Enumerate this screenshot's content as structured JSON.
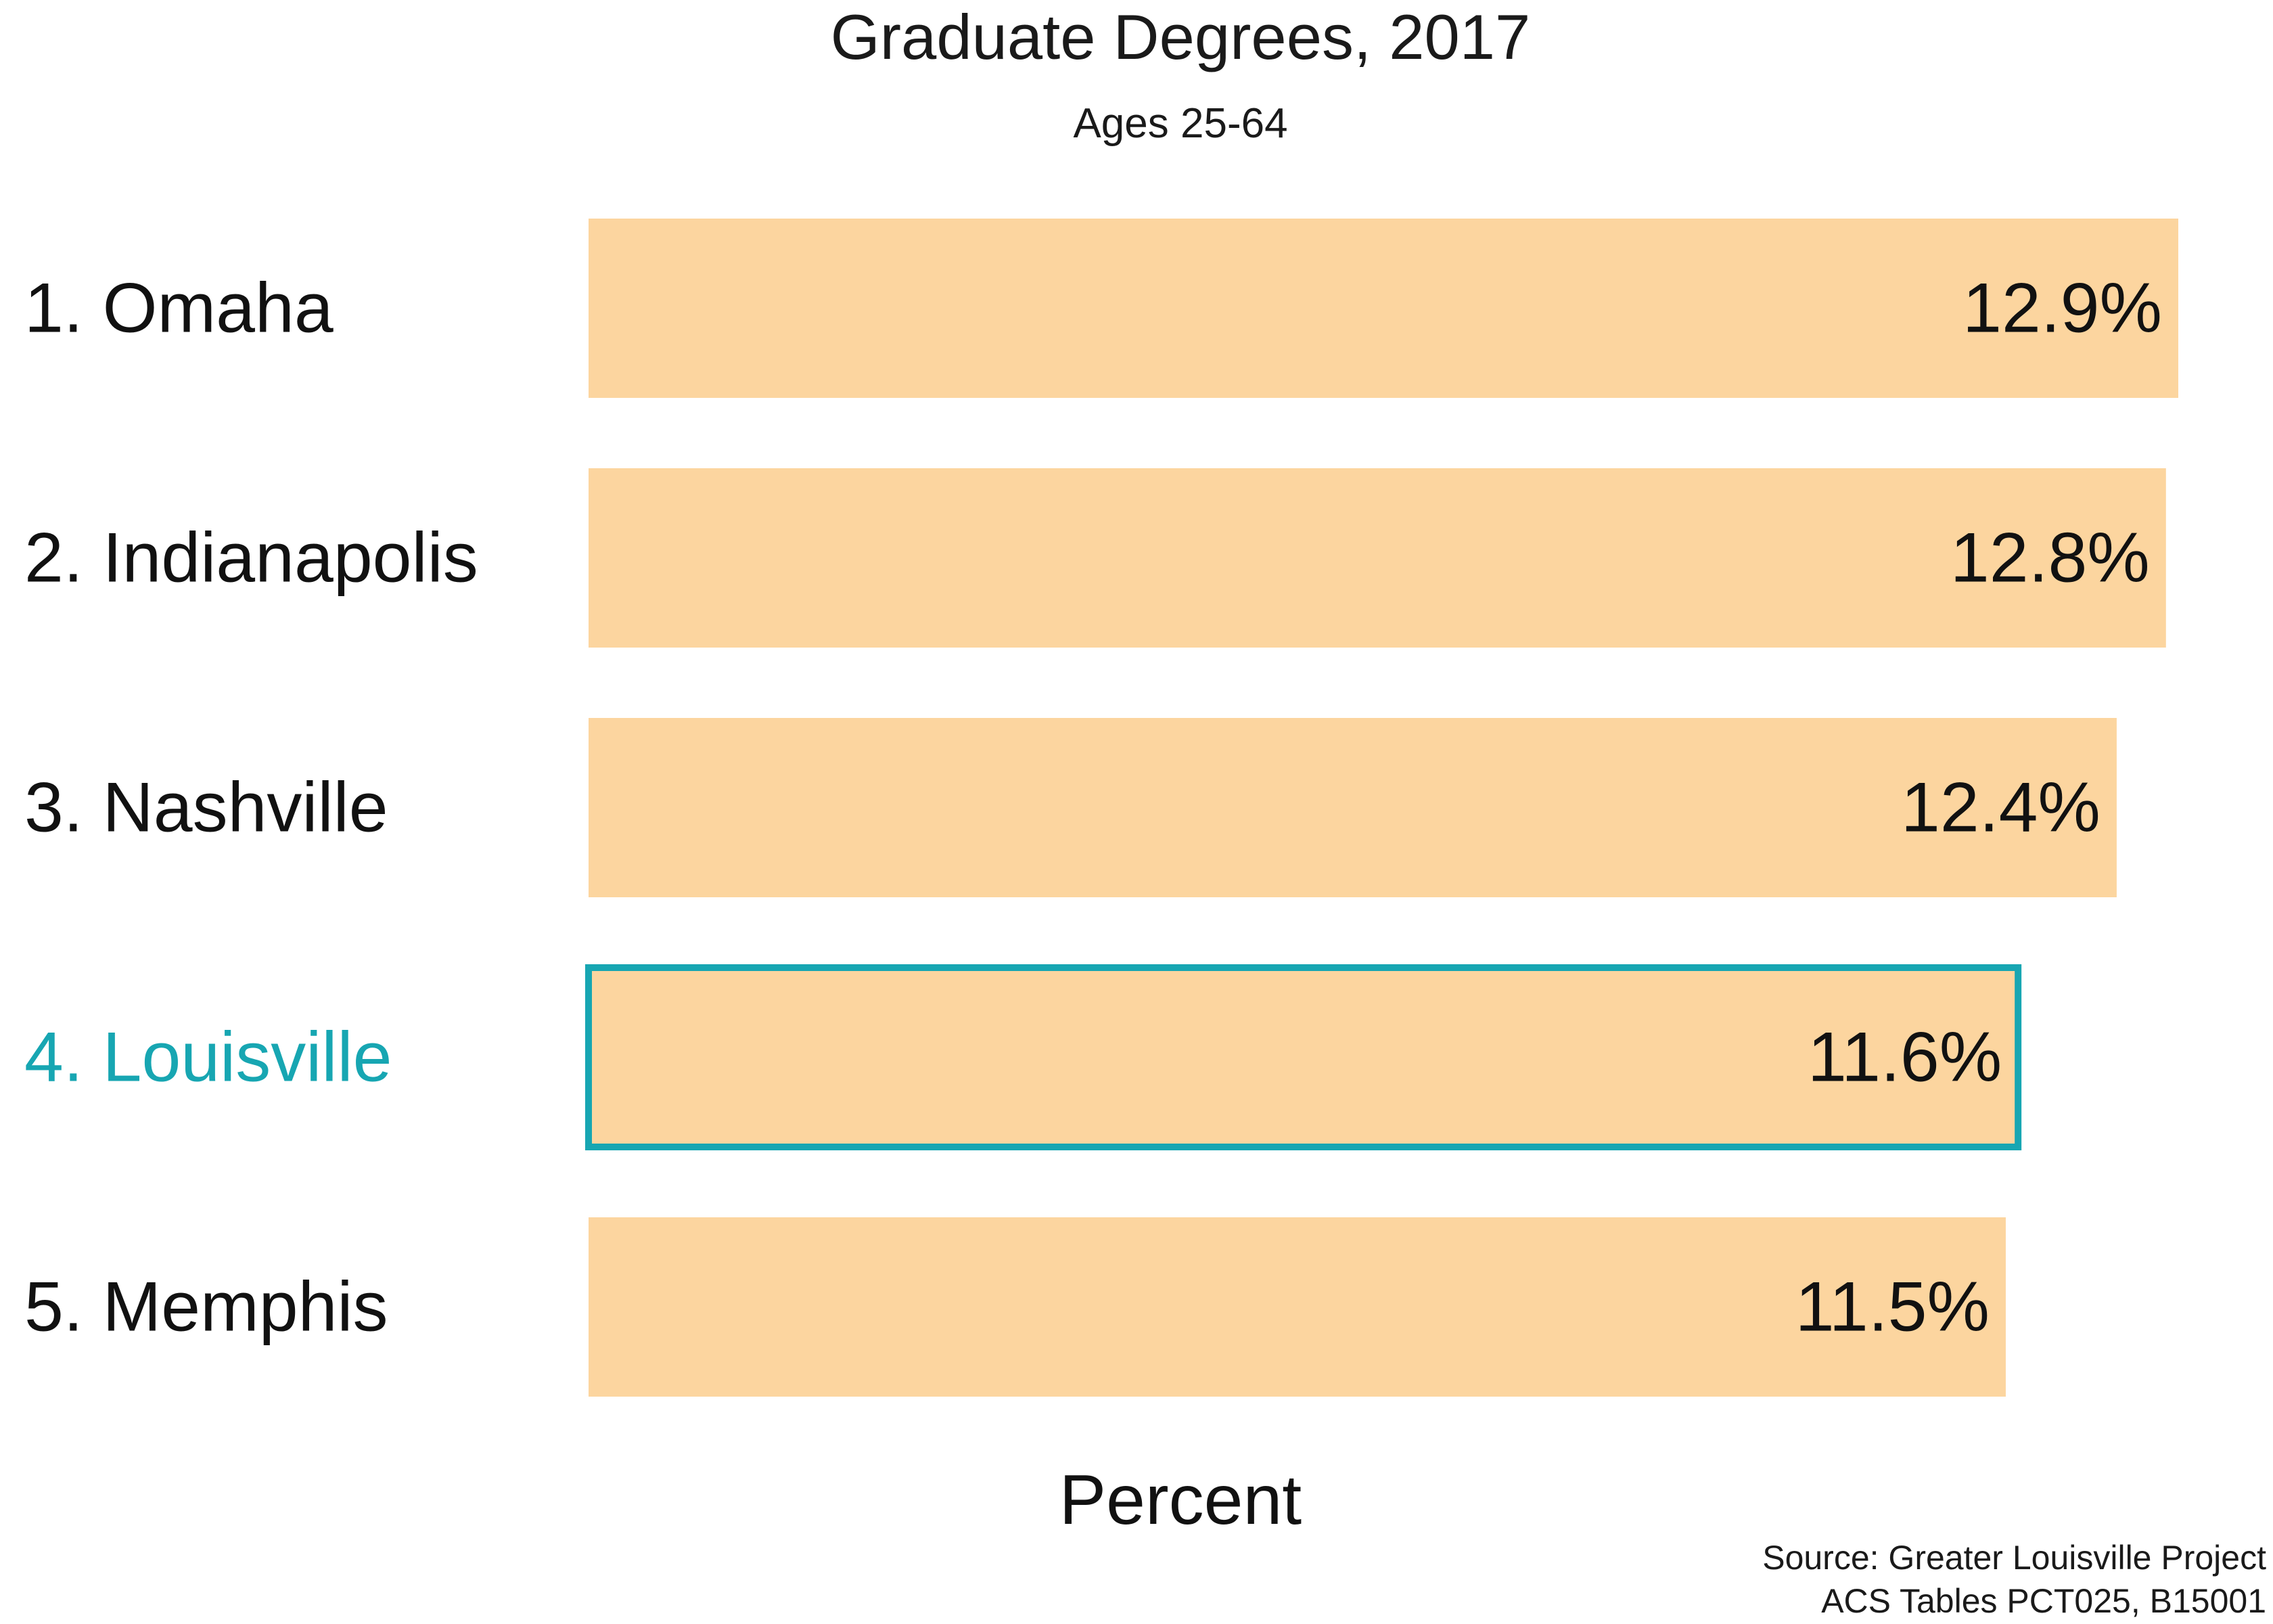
{
  "chart_data": {
    "type": "bar",
    "orientation": "horizontal",
    "title": "Graduate Degrees, 2017",
    "subtitle": "Ages 25-64",
    "xlabel": "Percent",
    "ylabel": "",
    "categories": [
      "1. Omaha",
      "2. Indianapolis",
      "3. Nashville",
      "4. Louisville",
      "5. Memphis"
    ],
    "values": [
      12.9,
      12.8,
      12.4,
      11.6,
      11.5
    ],
    "value_labels": [
      "12.9%",
      "12.8%",
      "12.4%",
      "11.6%",
      "11.5%"
    ],
    "highlight_category": "4. Louisville",
    "xlim": [
      0,
      12.9
    ],
    "grid": false,
    "legend": "none",
    "colors": {
      "bar": "#fcd59f",
      "highlight": "#17a6b2",
      "text": "#111111"
    }
  },
  "source": {
    "line1": "Source: Greater Louisville Project",
    "line2": "ACS Tables PCT025, B15001"
  }
}
